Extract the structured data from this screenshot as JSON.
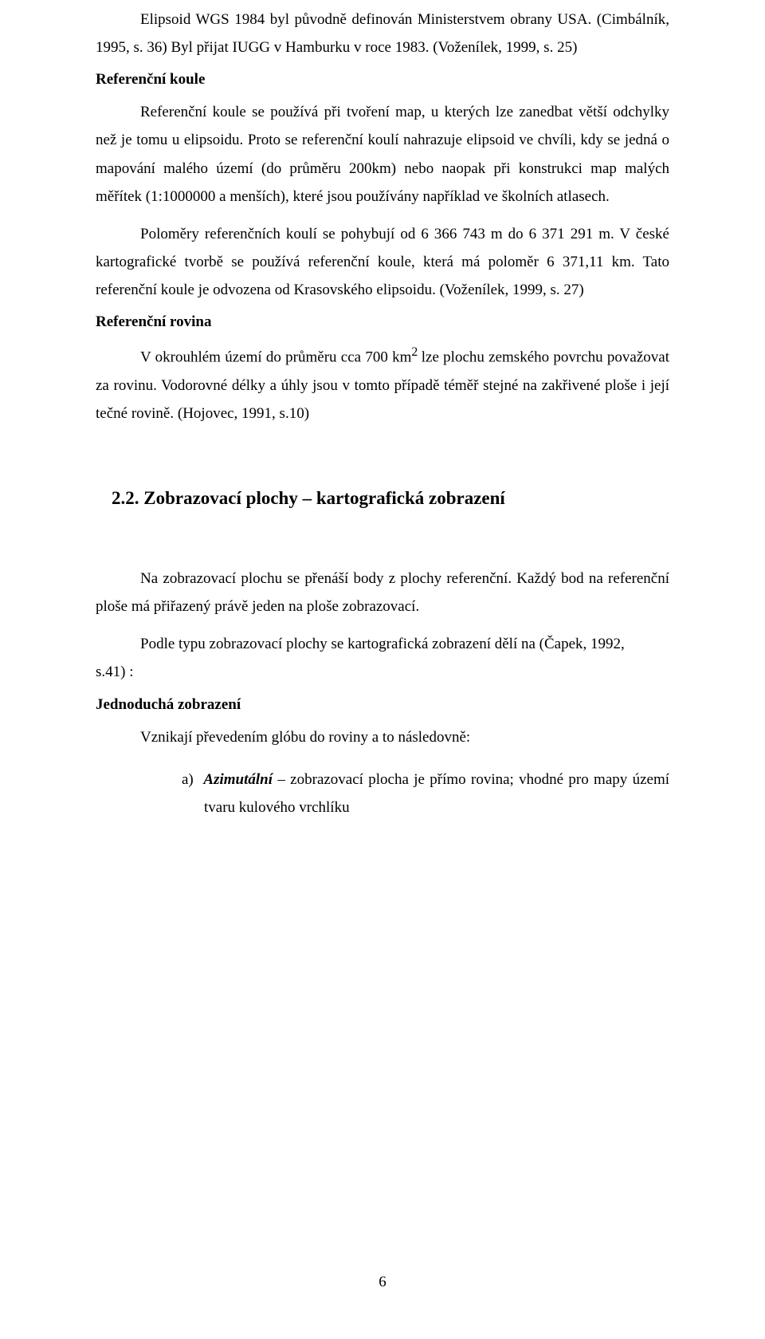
{
  "p1": "Elipsoid WGS 1984 byl původně definován Ministerstvem obrany USA. (Cimbálník, 1995, s. 36) Byl přijat IUGG v Hamburku v roce 1983. (Voženílek, 1999, s. 25)",
  "sec1_title": "Referenční koule",
  "p2": "Referenční koule se používá při tvoření map, u kterých lze zanedbat větší odchylky než je tomu u elipsoidu. Proto se referenční koulí nahrazuje elipsoid ve chvíli, kdy se jedná o mapování malého území (do průměru 200km) nebo naopak při konstrukci map malých měřítek  (1:1000000 a menších), které jsou používány například ve školních atlasech.",
  "p3": "Poloměry referenčních koulí se pohybují od 6 366 743 m do 6 371 291 m. V české kartografické tvorbě se používá referenční koule, která má poloměr 6 371,11 km. Tato referenční koule je odvozena od Krasovského elipsoidu. (Voženílek, 1999, s. 27)",
  "sec2_title": "Referenční rovina",
  "p4_a": "V okrouhlém území do průměru cca 700 km",
  "p4_sup": "2 ",
  "p4_b": "lze plochu zemského povrchu považovat za rovinu. Vodorovné délky a úhly jsou v tomto případě téměř stejné na zakřivené ploše i její tečné rovině. (Hojovec, 1991, s.10)",
  "h2": "2.2.  Zobrazovací plochy – kartografická zobrazení",
  "p5": "Na zobrazovací plochu se přenáší body z plochy referenční. Každý bod na referenční ploše má přiřazený právě jeden na ploše zobrazovací.",
  "p6_a": "Podle typu zobrazovací plochy se kartografická zobrazení dělí na (Čapek, 1992,",
  "p6_b": "s.41) :",
  "sec3_title": "Jednoduchá zobrazení",
  "p7": "Vznikají převedením glóbu do roviny a to následovně:",
  "li_a_marker": "a)",
  "li_a_term": "Azimutální",
  "li_a_rest": " – zobrazovací plocha je přímo rovina; vhodné pro mapy území tvaru kulového vrchlíku",
  "page_number": "6"
}
